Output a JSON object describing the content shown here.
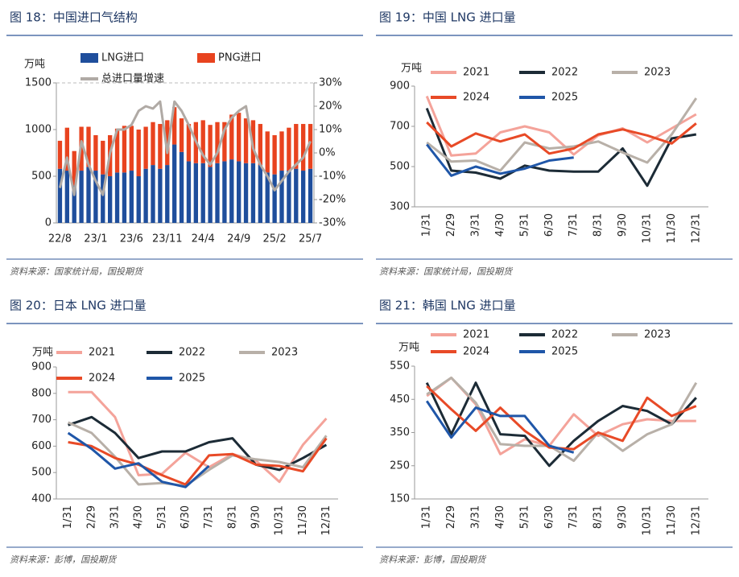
{
  "chart_data": [
    {
      "type": "bar",
      "title": "图 18：中国进口气结构",
      "source": "资料来源：国家统计局，国投期货",
      "y_label": "万吨",
      "stacked": true,
      "categories": [
        "22/8",
        null,
        null,
        null,
        null,
        "23/1",
        null,
        null,
        null,
        null,
        "23/6",
        null,
        null,
        null,
        null,
        "23/11",
        null,
        null,
        null,
        null,
        "24/4",
        null,
        null,
        null,
        null,
        "24/9",
        null,
        null,
        null,
        null,
        "25/2",
        null,
        null,
        null,
        null,
        "25/7"
      ],
      "series": [
        {
          "name": "LNG进口",
          "color": "#1f4e9c",
          "values": [
            580,
            560,
            400,
            560,
            600,
            560,
            520,
            500,
            540,
            540,
            560,
            500,
            580,
            620,
            580,
            620,
            840,
            760,
            660,
            640,
            640,
            600,
            640,
            660,
            680,
            660,
            640,
            640,
            620,
            540,
            520,
            560,
            560,
            580,
            560,
            580
          ]
        },
        {
          "name": "PNG进口",
          "color": "#e8431f",
          "values": [
            300,
            460,
            370,
            470,
            430,
            380,
            360,
            440,
            470,
            500,
            480,
            500,
            450,
            460,
            480,
            480,
            400,
            360,
            400,
            440,
            460,
            450,
            440,
            420,
            480,
            520,
            480,
            460,
            440,
            440,
            420,
            420,
            460,
            480,
            500,
            480
          ]
        },
        {
          "name": "总进口量增速",
          "color": "#b0aaa5",
          "type": "line",
          "axis": "y2",
          "values": [
            -15,
            -2,
            -18,
            5,
            -5,
            -12,
            -18,
            0,
            10,
            10,
            12,
            18,
            20,
            19,
            22,
            0,
            22,
            18,
            12,
            5,
            -1,
            -5,
            0,
            10,
            15,
            18,
            20,
            2,
            -5,
            -10,
            -16,
            -12,
            -8,
            -5,
            -2,
            5
          ]
        }
      ],
      "ylim": [
        0,
        1500
      ],
      "yticks": [
        0,
        500,
        1000,
        1500
      ],
      "y2lim": [
        -30,
        30
      ],
      "y2ticks": [
        {
          "value": -30,
          "label": "-30%"
        },
        {
          "value": -20,
          "label": "-20%"
        },
        {
          "value": -10,
          "label": "-10%"
        },
        {
          "value": 0,
          "label": "0%"
        },
        {
          "value": 10,
          "label": "10%"
        },
        {
          "value": 20,
          "label": "20%"
        },
        {
          "value": 30,
          "label": "30%"
        }
      ]
    },
    {
      "type": "line",
      "title": "图 19：中国 LNG 进口量",
      "source": "资料来源：国家统计局，国投期货",
      "y_label": "万吨",
      "categories": [
        "1/31",
        "2/29",
        "3/31",
        "4/30",
        "5/31",
        "6/30",
        "7/31",
        "8/31",
        "9/30",
        "10/31",
        "11/30",
        "12/31"
      ],
      "series": [
        {
          "name": "2021",
          "color": "#f4a39a",
          "values": [
            850,
            555,
            565,
            670,
            700,
            670,
            560,
            655,
            690,
            620,
            690,
            760
          ]
        },
        {
          "name": "2022",
          "color": "#1c2b36",
          "values": [
            790,
            480,
            470,
            440,
            505,
            480,
            475,
            475,
            590,
            405,
            640,
            660
          ]
        },
        {
          "name": "2023",
          "color": "#b8b0a8",
          "values": [
            620,
            525,
            530,
            480,
            620,
            590,
            600,
            625,
            570,
            520,
            660,
            840
          ]
        },
        {
          "name": "2024",
          "color": "#e84a27",
          "values": [
            720,
            600,
            665,
            625,
            660,
            565,
            590,
            660,
            685,
            655,
            615,
            715
          ]
        },
        {
          "name": "2025",
          "color": "#1f56a8",
          "values": [
            610,
            455,
            500,
            465,
            490,
            530,
            545,
            null,
            null,
            null,
            null,
            null
          ]
        }
      ],
      "ylim": [
        300,
        900
      ],
      "yticks": [
        300,
        500,
        700,
        900
      ]
    },
    {
      "type": "line",
      "title": "图 20：日本 LNG 进口量",
      "source": "资料来源：彭博，国投期货",
      "y_label": "万吨",
      "categories": [
        "1/31",
        "2/29",
        "3/31",
        "4/30",
        "5/31",
        "6/30",
        "7/31",
        "8/31",
        "9/30",
        "10/31",
        "11/30",
        "12/31"
      ],
      "series": [
        {
          "name": "2021",
          "color": "#f4a39a",
          "values": [
            805,
            805,
            710,
            490,
            495,
            575,
            520,
            570,
            545,
            465,
            605,
            705
          ]
        },
        {
          "name": "2022",
          "color": "#1c2b36",
          "values": [
            680,
            710,
            650,
            555,
            580,
            580,
            615,
            630,
            530,
            510,
            555,
            605
          ]
        },
        {
          "name": "2023",
          "color": "#b8b0a8",
          "values": [
            690,
            650,
            560,
            455,
            460,
            450,
            510,
            565,
            550,
            540,
            520,
            640
          ]
        },
        {
          "name": "2024",
          "color": "#e84a27",
          "values": [
            615,
            600,
            555,
            530,
            490,
            455,
            565,
            570,
            530,
            525,
            505,
            630
          ]
        },
        {
          "name": "2025",
          "color": "#1f56a8",
          "values": [
            650,
            590,
            515,
            535,
            465,
            445,
            525,
            null,
            null,
            null,
            null,
            null
          ]
        }
      ],
      "ylim": [
        400,
        900
      ],
      "yticks": [
        400,
        500,
        600,
        700,
        800,
        900
      ]
    },
    {
      "type": "line",
      "title": "图 21：韩国 LNG 进口量",
      "source": "资料来源：彭博，国投期货",
      "y_label": "万吨",
      "categories": [
        "1/31",
        "2/29",
        "3/31",
        "4/30",
        "5/31",
        "6/30",
        "7/31",
        "8/31",
        "9/30",
        "10/31",
        "11/30",
        "12/31"
      ],
      "series": [
        {
          "name": "2021",
          "color": "#f4a39a",
          "values": [
            460,
            515,
            435,
            285,
            330,
            310,
            405,
            340,
            375,
            390,
            385,
            385
          ]
        },
        {
          "name": "2022",
          "color": "#1c2b36",
          "values": [
            500,
            345,
            500,
            345,
            340,
            250,
            325,
            385,
            430,
            415,
            375,
            455
          ]
        },
        {
          "name": "2023",
          "color": "#b8b0a8",
          "values": [
            465,
            515,
            440,
            315,
            310,
            310,
            265,
            350,
            295,
            345,
            375,
            500
          ]
        },
        {
          "name": "2024",
          "color": "#e84a27",
          "values": [
            490,
            420,
            355,
            425,
            355,
            305,
            300,
            350,
            325,
            455,
            400,
            430
          ]
        },
        {
          "name": "2025",
          "color": "#1f56a8",
          "values": [
            445,
            335,
            425,
            400,
            400,
            310,
            290,
            null,
            null,
            null,
            null,
            null
          ]
        }
      ],
      "ylim": [
        150,
        550
      ],
      "yticks": [
        150,
        250,
        350,
        450,
        550
      ]
    }
  ]
}
